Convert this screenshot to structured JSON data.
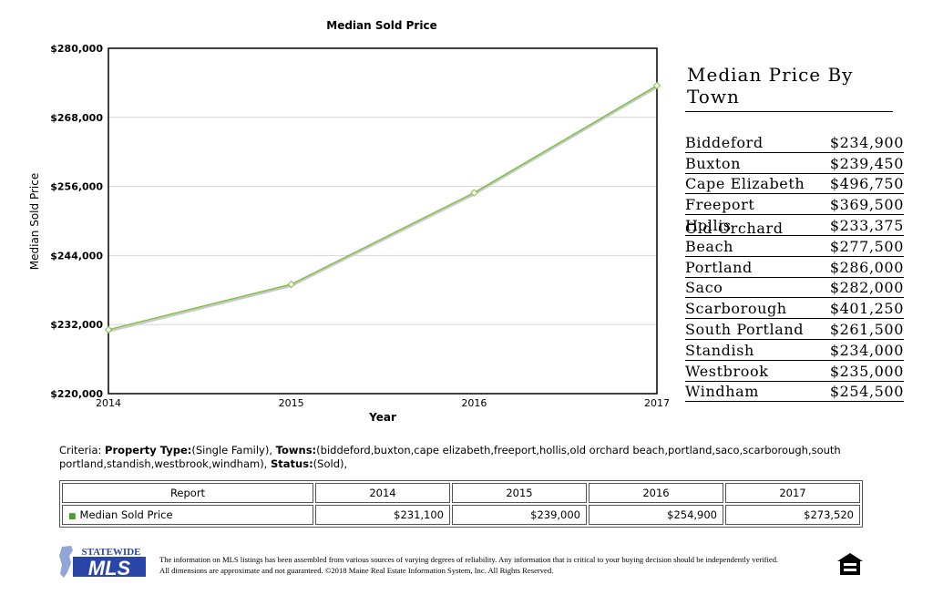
{
  "chart_data": {
    "type": "line",
    "title": "Median Sold Price",
    "xlabel": "Year",
    "ylabel": "Median Sold Price",
    "categories": [
      "2014",
      "2015",
      "2016",
      "2017"
    ],
    "series": [
      {
        "name": "Median Sold Price",
        "values": [
          231100,
          239000,
          254900,
          273520
        ]
      }
    ],
    "ylim": [
      220000,
      280000
    ],
    "yticks": [
      220000,
      232000,
      244000,
      256000,
      268000,
      280000
    ],
    "ytick_labels": [
      "$220,000",
      "$232,000",
      "$244,000",
      "$256,000",
      "$268,000",
      "$280,000"
    ],
    "grid": true,
    "color": "#7cc142"
  },
  "town_panel": {
    "heading": "Median Price By Town",
    "towns": [
      {
        "name": "Biddeford",
        "price": "$234,900"
      },
      {
        "name": "Buxton",
        "price": "$239,450"
      },
      {
        "name": "Cape Elizabeth",
        "price": "$496,750"
      },
      {
        "name": "Freeport",
        "price": "$369,500"
      },
      {
        "name": "Hollis",
        "price": "$233,375"
      },
      {
        "name": "Old Orchard Beach",
        "price": "$277,500"
      },
      {
        "name": "Portland",
        "price": "$286,000"
      },
      {
        "name": "Saco",
        "price": "$282,000"
      },
      {
        "name": "Scarborough",
        "price": "$401,250"
      },
      {
        "name": "South Portland",
        "price": "$261,500"
      },
      {
        "name": "Standish",
        "price": "$234,000"
      },
      {
        "name": "Westbrook",
        "price": "$235,000"
      },
      {
        "name": "Windham",
        "price": "$254,500"
      }
    ]
  },
  "criteria": {
    "prefix": "Criteria: ",
    "property_type_label": "Property Type:",
    "property_type_value": "(Single Family), ",
    "towns_label": "Towns:",
    "towns_value": "(biddeford,buxton,cape elizabeth,freeport,hollis,old orchard beach,portland,saco,scarborough,south portland,standish,westbrook,windham), ",
    "status_label": "Status:",
    "status_value": "(Sold),"
  },
  "report_table": {
    "headers": [
      "Report",
      "2014",
      "2015",
      "2016",
      "2017"
    ],
    "row_label": "Median Sold Price",
    "row_values": [
      "$231,100",
      "$239,000",
      "$254,900",
      "$273,520"
    ]
  },
  "footer": {
    "logo_top": "STATEWIDE",
    "logo_main": "MLS",
    "line1": "The information on MLS listings has been assembled from various sources of varying degrees of reliability. Any information that is critical to your buying decision should be independently verified.",
    "line2": "All dimensions are approximate and not guaranteed. ©2018 Maine Real Estate Information System, Inc. All Rights Reserved.",
    "icon": "equal-housing-opportunity-icon"
  }
}
